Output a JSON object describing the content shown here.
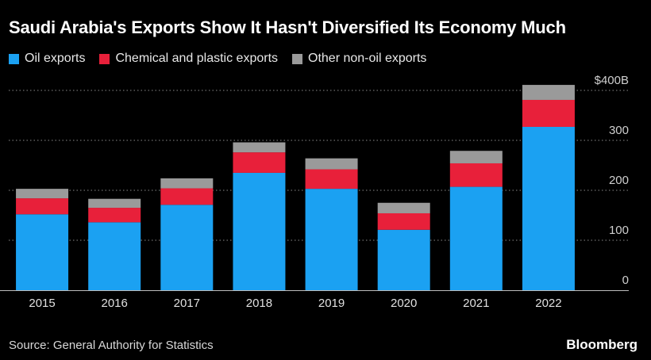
{
  "chart_data": {
    "type": "bar",
    "stacked": true,
    "title": "Saudi Arabia's Exports Show It Hasn't Diversified Its Economy Much",
    "categories": [
      "2015",
      "2016",
      "2017",
      "2018",
      "2019",
      "2020",
      "2021",
      "2022"
    ],
    "series": [
      {
        "name": "Oil exports",
        "color": "#1ba1f2",
        "values": [
          152,
          136,
          171,
          235,
          203,
          121,
          207,
          327
        ]
      },
      {
        "name": "Chemical and plastic exports",
        "color": "#e8203a",
        "values": [
          32,
          29,
          33,
          41,
          39,
          33,
          47,
          54
        ]
      },
      {
        "name": "Other non-oil exports",
        "color": "#9a9a9a",
        "values": [
          19,
          18,
          20,
          20,
          22,
          21,
          25,
          30
        ]
      }
    ],
    "yticks": [
      {
        "value": 0,
        "label": "0"
      },
      {
        "value": 100,
        "label": "100"
      },
      {
        "value": 200,
        "label": "200"
      },
      {
        "value": 300,
        "label": "300"
      },
      {
        "value": 400,
        "label": "$400B"
      }
    ],
    "ylim": [
      0,
      400
    ],
    "xlabel": "",
    "ylabel": "",
    "grid": true,
    "legend_position": "top-left"
  },
  "source": "Source: General Authority for Statistics",
  "brand": "Bloomberg"
}
